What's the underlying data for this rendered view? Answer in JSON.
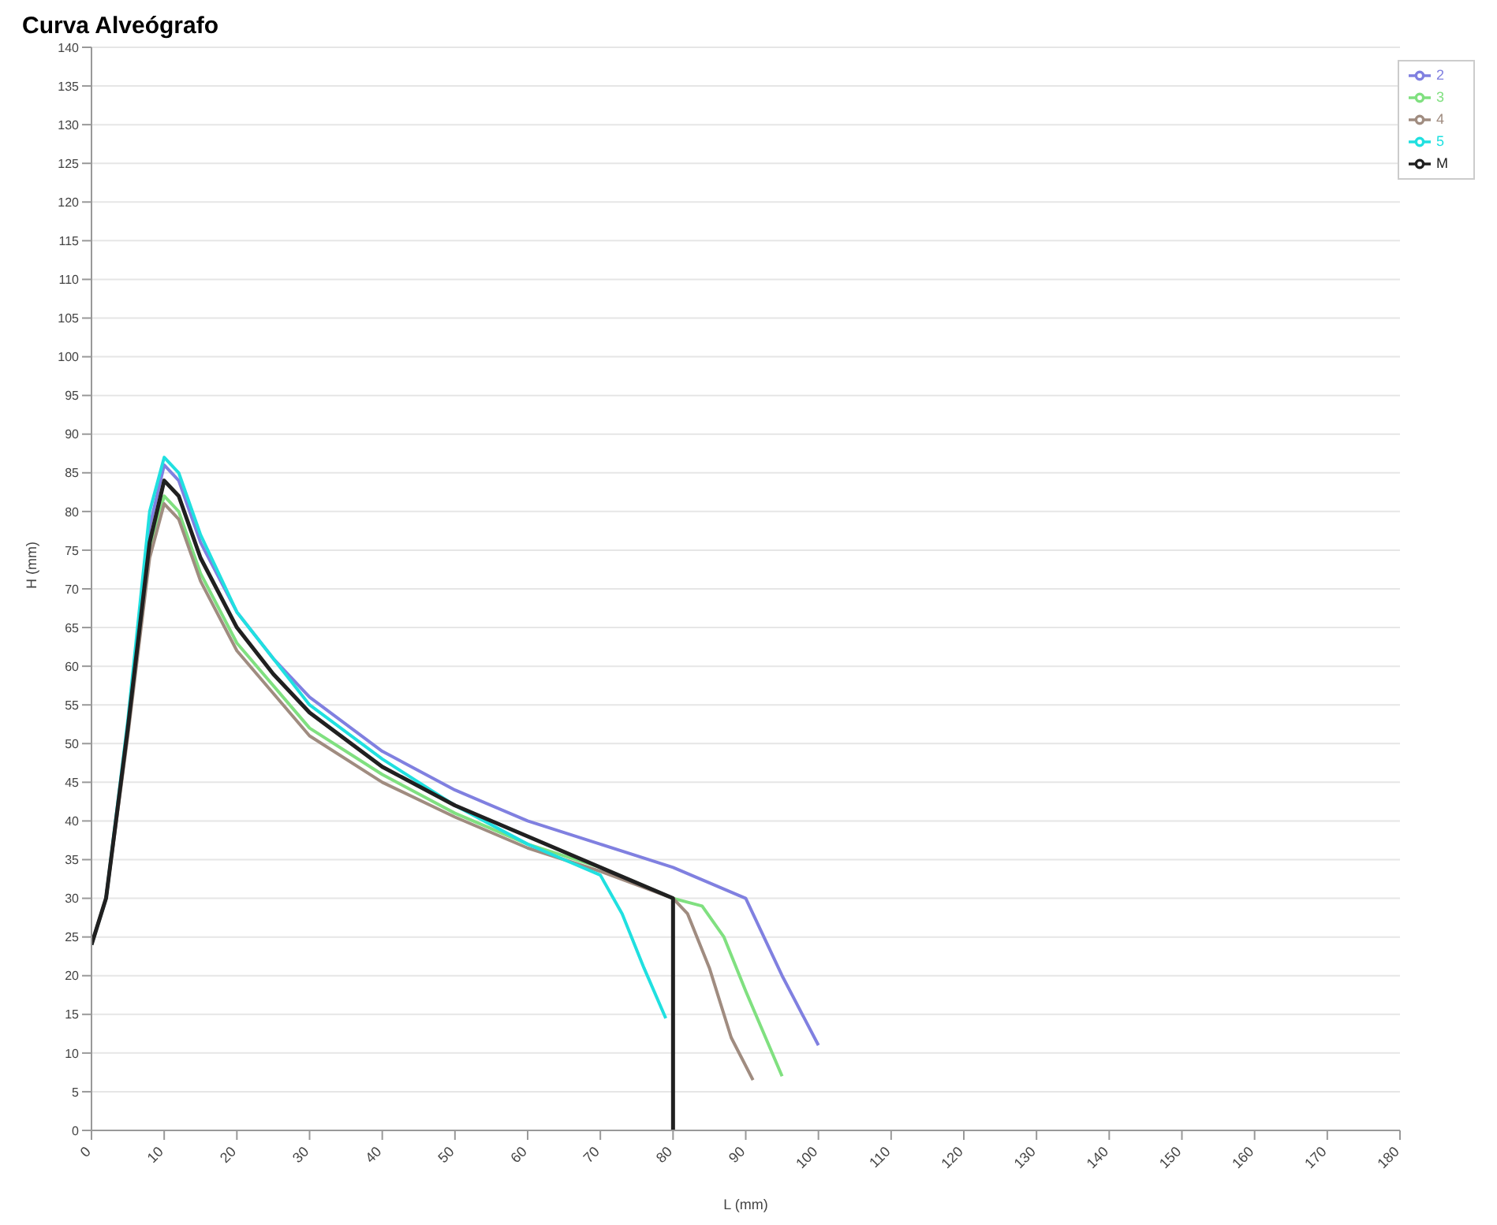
{
  "chart_data": {
    "type": "line",
    "title": "Curva Alveógrafo",
    "xlabel": "L (mm)",
    "ylabel": "H (mm)",
    "xlim": [
      0,
      180
    ],
    "xticks": [
      0,
      10,
      20,
      30,
      40,
      50,
      60,
      70,
      80,
      90,
      100,
      110,
      120,
      130,
      140,
      150,
      160,
      170,
      180
    ],
    "ylim": [
      0,
      140
    ],
    "yticks": [
      0,
      5,
      10,
      15,
      20,
      25,
      30,
      35,
      40,
      45,
      50,
      55,
      60,
      65,
      70,
      75,
      80,
      85,
      90,
      95,
      100,
      105,
      110,
      115,
      120,
      125,
      130,
      135,
      140
    ],
    "grid": "y",
    "legend": "top right",
    "marker": "none",
    "line_style": "solid",
    "series": [
      {
        "name": "2",
        "color": "#8080e0",
        "x": [
          2,
          5,
          8,
          10,
          12,
          15,
          20,
          25,
          30,
          40,
          50,
          60,
          70,
          80,
          90,
          92,
          95,
          100
        ],
        "values": [
          30,
          52,
          78,
          86,
          84,
          76,
          67,
          61,
          56,
          49,
          44,
          40,
          37,
          34,
          30,
          26,
          20,
          11
        ]
      },
      {
        "name": "3",
        "color": "#80e080",
        "x": [
          2,
          5,
          8,
          10,
          12,
          15,
          20,
          30,
          40,
          50,
          60,
          70,
          80,
          84,
          87,
          90,
          95
        ],
        "values": [
          30,
          52,
          75,
          82,
          80,
          72,
          63,
          52,
          46,
          41,
          37,
          34,
          30,
          29,
          25,
          18,
          7
        ]
      },
      {
        "name": "4",
        "color": "#a08c80",
        "x": [
          0,
          2,
          5,
          8,
          10,
          12,
          15,
          20,
          30,
          40,
          50,
          60,
          70,
          80,
          82,
          85,
          88,
          91
        ],
        "values": [
          24,
          30,
          51,
          74,
          81,
          79,
          71,
          62,
          51,
          45,
          40.5,
          36.5,
          33.5,
          30,
          28,
          21,
          12,
          6.5
        ]
      },
      {
        "name": "5",
        "color": "#20e0e0",
        "x": [
          0,
          2,
          5,
          8,
          10,
          12,
          15,
          20,
          30,
          40,
          50,
          60,
          65,
          70,
          73,
          76,
          79
        ],
        "values": [
          24,
          30,
          53,
          80,
          87,
          85,
          77,
          67,
          55,
          48,
          42,
          37,
          35,
          33,
          28,
          21,
          14.5
        ]
      },
      {
        "name": "M",
        "color": "#202020",
        "x": [
          0,
          2,
          5,
          8,
          10,
          12,
          15,
          20,
          25,
          30,
          40,
          50,
          60,
          70,
          80,
          80
        ],
        "values": [
          24,
          30,
          52,
          76,
          84,
          82,
          74,
          65,
          59,
          54,
          47,
          42,
          38,
          34,
          30,
          0
        ]
      }
    ]
  }
}
